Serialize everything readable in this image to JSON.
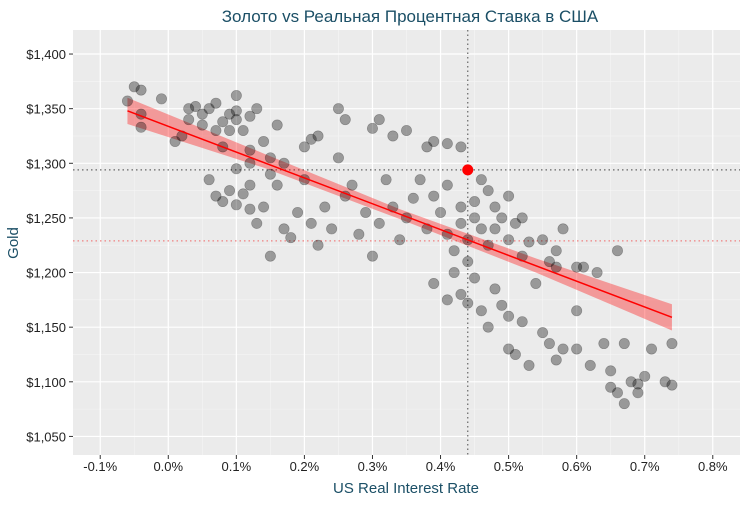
{
  "chart_data": {
    "type": "scatter",
    "title": "Золото vs Реальная Процентная Ставка в США",
    "xlabel": "US Real Interest Rate",
    "ylabel": "Gold",
    "xlim": [
      -0.14,
      0.84
    ],
    "ylim": [
      1033,
      1422
    ],
    "x_ticks": [
      -0.1,
      0.0,
      0.1,
      0.2,
      0.3,
      0.4,
      0.5,
      0.6,
      0.7,
      0.8
    ],
    "x_tick_labels": [
      "-0.1%",
      "0.0%",
      "0.1%",
      "0.2%",
      "0.3%",
      "0.4%",
      "0.5%",
      "0.6%",
      "0.7%",
      "0.8%"
    ],
    "y_ticks": [
      1050,
      1100,
      1150,
      1200,
      1250,
      1300,
      1350,
      1400
    ],
    "y_tick_labels": [
      "$1,050",
      "$1,100",
      "$1,150",
      "$1,200",
      "$1,250",
      "$1,300",
      "$1,350",
      "$1,400"
    ],
    "grid": true,
    "colors": {
      "points": "#000000",
      "fit": "#ff0000",
      "ribbon": "#ff0000",
      "highlight": "#ff0000",
      "title": "#1b4f66"
    },
    "regression": {
      "x": [
        -0.06,
        0.74
      ],
      "y": [
        1348,
        1159
      ]
    },
    "ribbon": [
      {
        "x": -0.06,
        "lo": 1336,
        "hi": 1360
      },
      {
        "x": 0.14,
        "lo": 1296,
        "hi": 1309
      },
      {
        "x": 0.34,
        "lo": 1249,
        "hi": 1258
      },
      {
        "x": 0.54,
        "lo": 1200,
        "hi": 1213
      },
      {
        "x": 0.74,
        "lo": 1147,
        "hi": 1171
      }
    ],
    "highlight_point": {
      "x": 0.44,
      "y": 1294
    },
    "reference_lines": {
      "vertical_x": 0.44,
      "horizontal_y": 1294,
      "mean_y": 1229
    },
    "points": [
      [
        -0.06,
        1357
      ],
      [
        -0.05,
        1370
      ],
      [
        -0.04,
        1367
      ],
      [
        -0.04,
        1345
      ],
      [
        -0.04,
        1333
      ],
      [
        -0.01,
        1359
      ],
      [
        0.01,
        1320
      ],
      [
        0.02,
        1325
      ],
      [
        0.03,
        1350
      ],
      [
        0.03,
        1340
      ],
      [
        0.04,
        1352
      ],
      [
        0.05,
        1345
      ],
      [
        0.05,
        1335
      ],
      [
        0.06,
        1350
      ],
      [
        0.07,
        1355
      ],
      [
        0.07,
        1330
      ],
      [
        0.08,
        1338
      ],
      [
        0.08,
        1315
      ],
      [
        0.09,
        1345
      ],
      [
        0.09,
        1330
      ],
      [
        0.1,
        1362
      ],
      [
        0.1,
        1348
      ],
      [
        0.1,
        1340
      ],
      [
        0.11,
        1330
      ],
      [
        0.12,
        1343
      ],
      [
        0.13,
        1350
      ],
      [
        0.12,
        1312
      ],
      [
        0.14,
        1320
      ],
      [
        0.15,
        1305
      ],
      [
        0.16,
        1335
      ],
      [
        0.17,
        1300
      ],
      [
        0.2,
        1315
      ],
      [
        0.21,
        1322
      ],
      [
        0.22,
        1325
      ],
      [
        0.25,
        1350
      ],
      [
        0.26,
        1340
      ],
      [
        0.3,
        1332
      ],
      [
        0.31,
        1340
      ],
      [
        0.33,
        1325
      ],
      [
        0.35,
        1330
      ],
      [
        0.38,
        1315
      ],
      [
        0.39,
        1320
      ],
      [
        0.41,
        1318
      ],
      [
        0.43,
        1315
      ],
      [
        0.07,
        1270
      ],
      [
        0.08,
        1265
      ],
      [
        0.09,
        1275
      ],
      [
        0.1,
        1262
      ],
      [
        0.11,
        1272
      ],
      [
        0.12,
        1258
      ],
      [
        0.12,
        1280
      ],
      [
        0.13,
        1245
      ],
      [
        0.14,
        1260
      ],
      [
        0.15,
        1290
      ],
      [
        0.16,
        1280
      ],
      [
        0.17,
        1240
      ],
      [
        0.18,
        1232
      ],
      [
        0.19,
        1255
      ],
      [
        0.2,
        1285
      ],
      [
        0.21,
        1245
      ],
      [
        0.22,
        1225
      ],
      [
        0.23,
        1260
      ],
      [
        0.24,
        1240
      ],
      [
        0.25,
        1305
      ],
      [
        0.26,
        1270
      ],
      [
        0.27,
        1280
      ],
      [
        0.28,
        1235
      ],
      [
        0.29,
        1255
      ],
      [
        0.3,
        1215
      ],
      [
        0.31,
        1245
      ],
      [
        0.32,
        1285
      ],
      [
        0.33,
        1260
      ],
      [
        0.34,
        1230
      ],
      [
        0.35,
        1250
      ],
      [
        0.36,
        1268
      ],
      [
        0.37,
        1285
      ],
      [
        0.38,
        1240
      ],
      [
        0.39,
        1270
      ],
      [
        0.4,
        1255
      ],
      [
        0.41,
        1280
      ],
      [
        0.41,
        1235
      ],
      [
        0.42,
        1220
      ],
      [
        0.42,
        1200
      ],
      [
        0.43,
        1260
      ],
      [
        0.43,
        1245
      ],
      [
        0.44,
        1230
      ],
      [
        0.44,
        1210
      ],
      [
        0.45,
        1265
      ],
      [
        0.45,
        1250
      ],
      [
        0.46,
        1285
      ],
      [
        0.46,
        1240
      ],
      [
        0.47,
        1275
      ],
      [
        0.47,
        1225
      ],
      [
        0.48,
        1260
      ],
      [
        0.48,
        1240
      ],
      [
        0.49,
        1250
      ],
      [
        0.5,
        1230
      ],
      [
        0.5,
        1270
      ],
      [
        0.51,
        1245
      ],
      [
        0.52,
        1250
      ],
      [
        0.52,
        1215
      ],
      [
        0.53,
        1228
      ],
      [
        0.55,
        1230
      ],
      [
        0.56,
        1210
      ],
      [
        0.57,
        1220
      ],
      [
        0.58,
        1240
      ],
      [
        0.15,
        1215
      ],
      [
        0.06,
        1285
      ],
      [
        0.1,
        1295
      ],
      [
        0.12,
        1300
      ],
      [
        0.39,
        1190
      ],
      [
        0.41,
        1175
      ],
      [
        0.43,
        1180
      ],
      [
        0.44,
        1172
      ],
      [
        0.45,
        1195
      ],
      [
        0.46,
        1165
      ],
      [
        0.47,
        1150
      ],
      [
        0.48,
        1185
      ],
      [
        0.49,
        1170
      ],
      [
        0.5,
        1160
      ],
      [
        0.5,
        1130
      ],
      [
        0.51,
        1125
      ],
      [
        0.52,
        1155
      ],
      [
        0.53,
        1115
      ],
      [
        0.54,
        1190
      ],
      [
        0.55,
        1145
      ],
      [
        0.56,
        1135
      ],
      [
        0.57,
        1120
      ],
      [
        0.58,
        1130
      ],
      [
        0.6,
        1165
      ],
      [
        0.6,
        1130
      ],
      [
        0.61,
        1205
      ],
      [
        0.62,
        1115
      ],
      [
        0.63,
        1200
      ],
      [
        0.64,
        1135
      ],
      [
        0.65,
        1110
      ],
      [
        0.65,
        1095
      ],
      [
        0.66,
        1220
      ],
      [
        0.66,
        1090
      ],
      [
        0.67,
        1080
      ],
      [
        0.67,
        1135
      ],
      [
        0.68,
        1100
      ],
      [
        0.69,
        1090
      ],
      [
        0.69,
        1098
      ],
      [
        0.7,
        1105
      ],
      [
        0.71,
        1130
      ],
      [
        0.73,
        1100
      ],
      [
        0.74,
        1097
      ],
      [
        0.74,
        1135
      ],
      [
        0.6,
        1205
      ],
      [
        0.57,
        1205
      ]
    ]
  }
}
